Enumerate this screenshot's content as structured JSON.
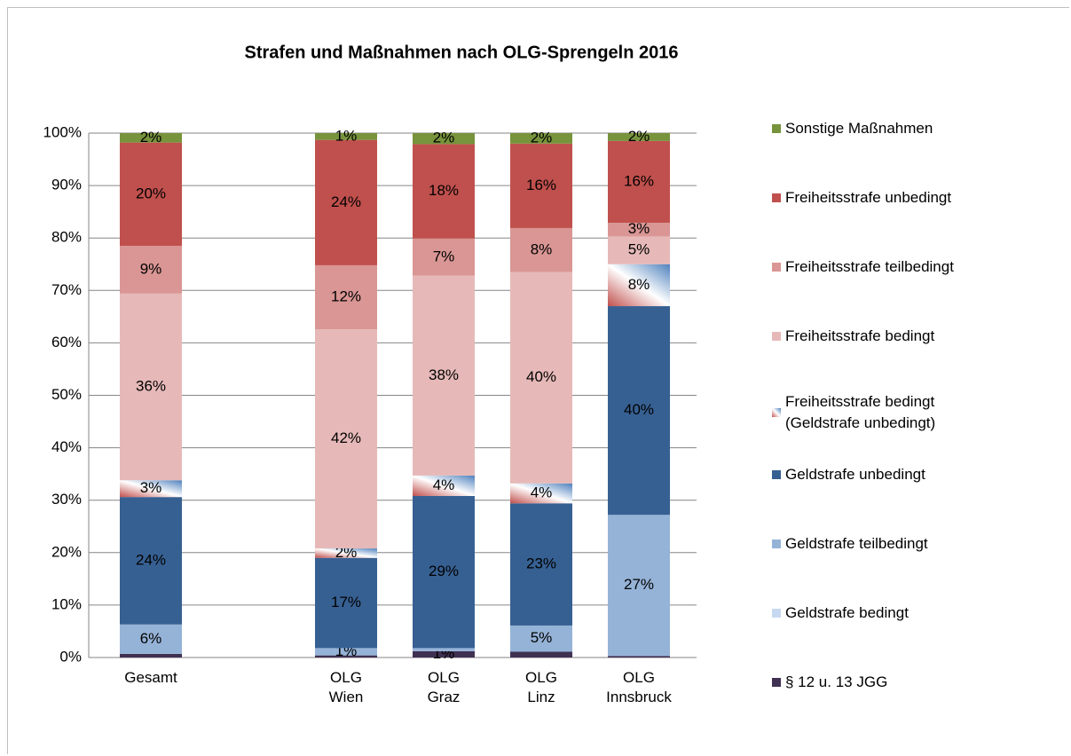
{
  "chart_data": {
    "type": "bar",
    "stacked": true,
    "title": "Strafen und Maßnahmen nach OLG-Sprengeln 2016",
    "categories": [
      "Gesamt",
      null,
      "OLG\nWien",
      "OLG\nGraz",
      "OLG\nLinz",
      "OLG\nInnsbruck"
    ],
    "ylim": [
      0,
      100
    ],
    "yticks": [
      {
        "value": 0,
        "label": "0%"
      },
      {
        "value": 10,
        "label": "10%"
      },
      {
        "value": 20,
        "label": "20%"
      },
      {
        "value": 30,
        "label": "30%"
      },
      {
        "value": 40,
        "label": "40%"
      },
      {
        "value": 50,
        "label": "50%"
      },
      {
        "value": 60,
        "label": "60%"
      },
      {
        "value": 70,
        "label": "70%"
      },
      {
        "value": 80,
        "label": "80%"
      },
      {
        "value": 90,
        "label": "90%"
      },
      {
        "value": 100,
        "label": "100%"
      }
    ],
    "grid": true,
    "legend": "right",
    "series": [
      {
        "name": "§ 12 u. 13 JGG",
        "color": "#403152",
        "values": [
          0.7,
          null,
          0.4,
          1.2,
          1.1,
          0.3
        ],
        "value_labels": [
          null,
          null,
          null,
          "1%",
          null,
          null
        ]
      },
      {
        "name": "Geldstrafe bedingt",
        "color": "#c6d9f1",
        "values": [
          0,
          null,
          0,
          0,
          0,
          0
        ],
        "value_labels": [
          null,
          null,
          null,
          null,
          null,
          null
        ]
      },
      {
        "name": "Geldstrafe teilbedingt",
        "color": "#95b3d7",
        "values": [
          5.6,
          null,
          1.4,
          0.6,
          5,
          26.9
        ],
        "value_labels": [
          "6%",
          null,
          "1%",
          null,
          "5%",
          "27%"
        ]
      },
      {
        "name": "Geldstrafe unbedingt",
        "color": "#376092",
        "values": [
          24.3,
          null,
          17.2,
          29,
          23.3,
          39.8
        ],
        "value_labels": [
          "24%",
          null,
          "17%",
          "29%",
          "23%",
          "40%"
        ]
      },
      {
        "name": "Freiheitsstrafe bedingt\n(Geldstrafe unbedingt)",
        "color": [
          "#c0504d",
          "#ffffff",
          "#4f81bd"
        ],
        "values": [
          3.2,
          null,
          1.8,
          3.9,
          3.8,
          8
        ],
        "value_labels": [
          "3%",
          null,
          "2%",
          "4%",
          "4%",
          "8%"
        ]
      },
      {
        "name": "Freiheitsstrafe bedingt",
        "color": "#e6b9b8",
        "values": [
          35.6,
          null,
          41.8,
          38.1,
          40.3,
          5.3
        ],
        "value_labels": [
          "36%",
          null,
          "42%",
          "38%",
          "40%",
          "5%"
        ]
      },
      {
        "name": "Freiheitsstrafe teilbedingt",
        "color": "#d99694",
        "values": [
          9.1,
          null,
          12.2,
          7.1,
          8.4,
          2.6
        ],
        "value_labels": [
          "9%",
          null,
          "12%",
          "7%",
          "8%",
          "3%"
        ]
      },
      {
        "name": "Freiheitsstrafe unbedingt",
        "color": "#c0504d",
        "values": [
          19.7,
          null,
          23.9,
          18,
          16.1,
          15.6
        ],
        "value_labels": [
          "20%",
          null,
          "24%",
          "18%",
          "16%",
          "16%"
        ]
      },
      {
        "name": "Sonstige Maßnahmen",
        "color": "#77933c",
        "values": [
          1.8,
          null,
          1.3,
          2.1,
          2,
          1.5
        ],
        "value_labels": [
          "2%",
          null,
          "1%",
          "2%",
          "2%",
          "2%"
        ]
      }
    ]
  }
}
